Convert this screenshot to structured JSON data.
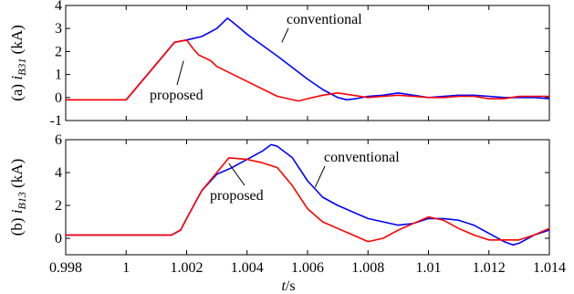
{
  "chart_data": {
    "type": "line",
    "xlabel_var": "t",
    "xlabel_unit": "/s",
    "x_ticks": [
      "0.998",
      "1",
      "1.002",
      "1.004",
      "1.006",
      "1.008",
      "1.01",
      "1.012",
      "1.014"
    ],
    "xlim": [
      0.998,
      1.014
    ],
    "colors": {
      "conventional": "#0000ff",
      "proposed": "#ff0000"
    },
    "panels": [
      {
        "label_prefix": "(a) ",
        "label_var": "i",
        "label_sub": "B31",
        "label_unit": " (kA)",
        "ylim": [
          -1,
          4
        ],
        "y_ticks": [
          "4",
          "3",
          "2",
          "1",
          "0",
          "-1"
        ],
        "y_tick_values": [
          4,
          3,
          2,
          1,
          0,
          -1
        ],
        "annotations": [
          {
            "text": "conventional",
            "target_x": 1.00515,
            "target_y": 2.4
          },
          {
            "text": "proposed",
            "target_x": 1.0019,
            "target_y": 1.6
          }
        ],
        "series": [
          {
            "key": "conventional",
            "x": [
              0.998,
              1.0,
              1.0016,
              1.002,
              1.0025,
              1.003,
              1.00335,
              1.0035,
              1.004,
              1.005,
              1.006,
              1.0065,
              1.007,
              1.0073,
              1.0076,
              1.008,
              1.0085,
              1.009,
              1.0095,
              1.01,
              1.0105,
              1.011,
              1.0115,
              1.012,
              1.0125,
              1.013,
              1.0135,
              1.014
            ],
            "y": [
              -0.1,
              -0.1,
              2.4,
              2.5,
              2.65,
              3.0,
              3.45,
              3.3,
              2.75,
              1.8,
              0.8,
              0.35,
              0.0,
              -0.1,
              -0.05,
              0.05,
              0.1,
              0.2,
              0.1,
              0.0,
              0.05,
              0.1,
              0.1,
              0.05,
              0.0,
              0.0,
              0.0,
              -0.05
            ]
          },
          {
            "key": "proposed",
            "x": [
              0.998,
              1.0,
              1.0016,
              1.002,
              1.0022,
              1.0024,
              1.0028,
              1.003,
              1.004,
              1.005,
              1.0057,
              1.006,
              1.0065,
              1.007,
              1.0075,
              1.008,
              1.0085,
              1.009,
              1.0095,
              1.01,
              1.0105,
              1.011,
              1.0115,
              1.012,
              1.0125,
              1.013,
              1.0135,
              1.014
            ],
            "y": [
              -0.1,
              -0.1,
              2.4,
              2.5,
              2.15,
              1.85,
              1.6,
              1.35,
              0.7,
              0.05,
              -0.15,
              -0.05,
              0.1,
              0.2,
              0.1,
              0.0,
              0.05,
              0.1,
              0.05,
              0.0,
              0.0,
              0.05,
              0.05,
              -0.05,
              -0.05,
              0.05,
              0.05,
              0.05
            ]
          }
        ]
      },
      {
        "label_prefix": "(b) ",
        "label_var": "i",
        "label_sub": "B13",
        "label_unit": " (kA)",
        "ylim": [
          -1,
          6
        ],
        "y_ticks": [
          "6",
          "4",
          "2",
          "0"
        ],
        "y_tick_values": [
          6,
          4,
          2,
          0
        ],
        "annotations": [
          {
            "text": "conventional",
            "target_x": 1.00625,
            "target_y": 3.1
          },
          {
            "text": "proposed",
            "target_x": 1.0034,
            "target_y": 4.55
          }
        ],
        "series": [
          {
            "key": "conventional",
            "x": [
              0.998,
              1.0,
              1.0015,
              1.0018,
              1.002,
              1.0025,
              1.003,
              1.0035,
              1.004,
              1.0045,
              1.0048,
              1.005,
              1.0055,
              1.006,
              1.0065,
              1.007,
              1.008,
              1.009,
              1.0095,
              1.01,
              1.0105,
              1.011,
              1.0115,
              1.012,
              1.0125,
              1.0128,
              1.013,
              1.0135,
              1.014
            ],
            "y": [
              0.2,
              0.2,
              0.2,
              0.5,
              1.2,
              2.9,
              3.9,
              4.3,
              4.8,
              5.3,
              5.7,
              5.6,
              4.9,
              3.5,
              2.5,
              2.0,
              1.2,
              0.8,
              0.9,
              1.2,
              1.2,
              1.1,
              0.8,
              0.3,
              -0.2,
              -0.4,
              -0.3,
              0.2,
              0.5
            ]
          },
          {
            "key": "proposed",
            "x": [
              0.998,
              1.0,
              1.0015,
              1.0018,
              1.002,
              1.0025,
              1.003,
              1.0034,
              1.004,
              1.0045,
              1.005,
              1.0055,
              1.006,
              1.0065,
              1.007,
              1.0075,
              1.008,
              1.0085,
              1.009,
              1.0095,
              1.01,
              1.0105,
              1.011,
              1.0115,
              1.012,
              1.0125,
              1.013,
              1.0135,
              1.014
            ],
            "y": [
              0.2,
              0.2,
              0.2,
              0.5,
              1.2,
              2.9,
              4.0,
              4.9,
              4.8,
              4.6,
              4.3,
              3.2,
              1.8,
              1.0,
              0.6,
              0.2,
              -0.2,
              0.0,
              0.5,
              0.9,
              1.3,
              1.1,
              0.6,
              0.2,
              -0.1,
              -0.1,
              -0.1,
              0.2,
              0.6
            ]
          }
        ]
      }
    ]
  }
}
